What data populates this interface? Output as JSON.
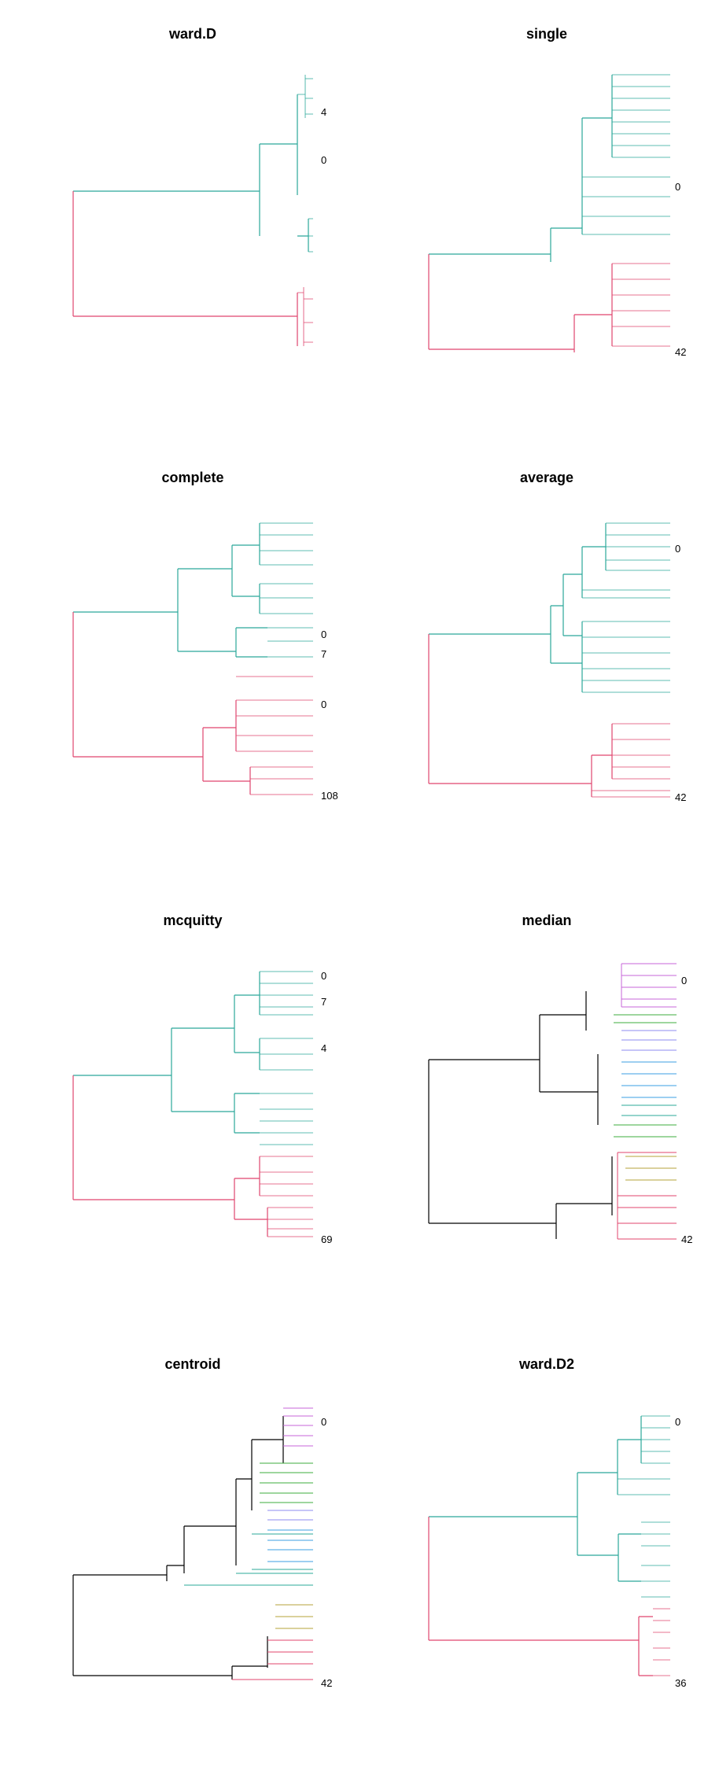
{
  "chart_data": [
    {
      "type": "dendrogram",
      "title": "ward.D",
      "orientation": "horizontal",
      "leaves": 150,
      "clusters": 2,
      "colors": [
        "#2BA89A",
        "#E0456E"
      ],
      "visible_leaf_labels": [
        "4",
        "0"
      ],
      "merges": [
        {
          "cluster": "top",
          "color": "#2BA89A",
          "height_rel": 0.3
        },
        {
          "cluster": "root",
          "height_rel": 1.0
        }
      ]
    },
    {
      "type": "dendrogram",
      "title": "single",
      "orientation": "horizontal",
      "leaves": 150,
      "clusters": 2,
      "colors": [
        "#2BA89A",
        "#E0456E"
      ],
      "visible_leaf_labels": [
        "0",
        "42"
      ],
      "merges": [
        {
          "cluster": "top",
          "color": "#2BA89A",
          "height_rel": 0.33
        },
        {
          "cluster": "root",
          "height_rel": 1.0
        }
      ]
    },
    {
      "type": "dendrogram",
      "title": "complete",
      "orientation": "horizontal",
      "leaves": 150,
      "clusters": 2,
      "colors": [
        "#2BA89A",
        "#E0456E"
      ],
      "visible_leaf_labels": [
        "0",
        "7",
        "0",
        "108"
      ],
      "merges": [
        {
          "cluster": "top",
          "color": "#2BA89A",
          "height_rel": 0.54
        },
        {
          "cluster": "root",
          "height_rel": 1.0
        }
      ]
    },
    {
      "type": "dendrogram",
      "title": "average",
      "orientation": "horizontal",
      "leaves": 150,
      "clusters": 2,
      "colors": [
        "#2BA89A",
        "#E0456E"
      ],
      "visible_leaf_labels": [
        "0",
        "42"
      ],
      "merges": [
        {
          "cluster": "top",
          "color": "#2BA89A",
          "height_rel": 0.55
        },
        {
          "cluster": "root",
          "height_rel": 1.0
        }
      ]
    },
    {
      "type": "dendrogram",
      "title": "mcquitty",
      "orientation": "horizontal",
      "leaves": 150,
      "clusters": 2,
      "colors": [
        "#2BA89A",
        "#E0456E"
      ],
      "visible_leaf_labels": [
        "0",
        "7",
        "4",
        "69"
      ],
      "merges": [
        {
          "cluster": "top",
          "color": "#2BA89A",
          "height_rel": 0.58
        },
        {
          "cluster": "root",
          "height_rel": 1.0
        }
      ]
    },
    {
      "type": "dendrogram",
      "title": "median",
      "orientation": "horizontal",
      "leaves": 150,
      "clusters": 7,
      "colors": [
        "#000000",
        "#C766D9",
        "#3DAE3D",
        "#8E8BF0",
        "#3B9FE3",
        "#2BA89A",
        "#E0456E",
        "#B5A33A"
      ],
      "visible_leaf_labels": [
        "0",
        "42"
      ],
      "merges": [
        {
          "cluster": "root",
          "height_rel": 1.0
        }
      ]
    },
    {
      "type": "dendrogram",
      "title": "centroid",
      "orientation": "horizontal",
      "leaves": 150,
      "clusters": 7,
      "colors": [
        "#000000",
        "#C766D9",
        "#3DAE3D",
        "#8E8BF0",
        "#3B9FE3",
        "#2BA89A",
        "#E0456E",
        "#B5A33A"
      ],
      "visible_leaf_labels": [
        "0",
        "42"
      ],
      "merges": [
        {
          "cluster": "root",
          "height_rel": 1.0
        }
      ]
    },
    {
      "type": "dendrogram",
      "title": "ward.D2",
      "orientation": "horizontal",
      "leaves": 150,
      "clusters": 2,
      "colors": [
        "#2BA89A",
        "#E0456E"
      ],
      "visible_leaf_labels": [
        "0",
        "36"
      ],
      "merges": [
        {
          "cluster": "top",
          "color": "#2BA89A",
          "height_rel": 0.38
        },
        {
          "cluster": "root",
          "height_rel": 1.0
        }
      ]
    }
  ]
}
